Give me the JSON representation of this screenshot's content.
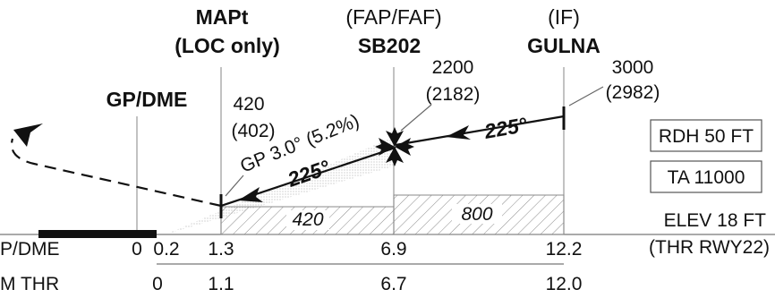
{
  "colors": {
    "ink": "#111111",
    "grid": "#9a9a9a",
    "hatch": "#8a8a8a",
    "box_stroke": "#555555"
  },
  "fixes": {
    "mapt": {
      "line1": "MAPt",
      "line2": "(LOC only)"
    },
    "faf": {
      "line1": "(FAP/FAF)",
      "line2": "SB202"
    },
    "if": {
      "line1": "(IF)",
      "line2": "GULNA"
    },
    "gp_dme": "GP/DME"
  },
  "altitudes": {
    "mapt": {
      "alt": "420",
      "hat": "(402)"
    },
    "faf": {
      "alt": "2200",
      "hat": "(2182)"
    },
    "if": {
      "alt": "3000",
      "hat": "(2982)"
    }
  },
  "glidepath": "GP 3.0° (5.2%)",
  "tracks": {
    "final": "225°",
    "initial": "225°"
  },
  "minimum_altitudes": {
    "seg1": "420",
    "seg2": "800"
  },
  "info_boxes": {
    "rdh": "RDH 50 FT",
    "ta": "TA 11000"
  },
  "elevation": {
    "elev": "ELEV 18 FT",
    "thr": "(THR RWY22)"
  },
  "distance_rows": {
    "gp_dme": {
      "label": "P/DME",
      "values": [
        "0",
        "0.2",
        "1.3",
        "6.9",
        "12.2"
      ]
    },
    "nm_thr": {
      "label": "M THR",
      "values": [
        "0",
        "1.1",
        "6.7",
        "12.0"
      ]
    }
  }
}
